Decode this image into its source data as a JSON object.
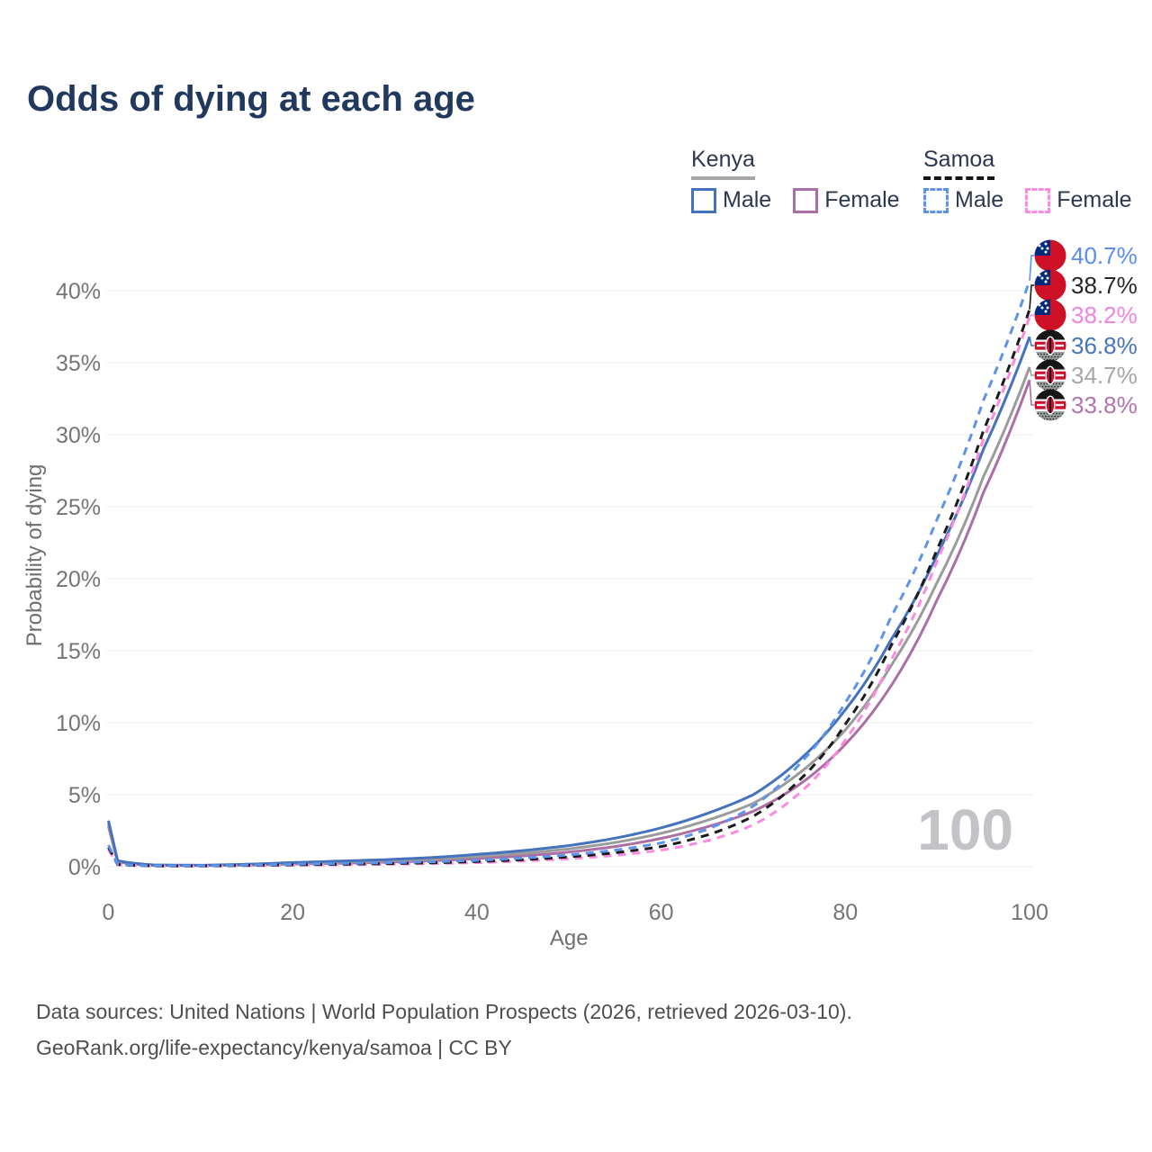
{
  "title": "Odds of dying at each age",
  "legend": {
    "groups": [
      {
        "country": "Kenya",
        "line_style": "solid",
        "underline_color": "#a6a6a6",
        "items": [
          {
            "label": "Male",
            "color": "#4472bd"
          },
          {
            "label": "Female",
            "color": "#ab6fa6"
          }
        ]
      },
      {
        "country": "Samoa",
        "line_style": "dashed",
        "underline_color": "#141414",
        "items": [
          {
            "label": "Male",
            "color": "#5e93ea"
          },
          {
            "label": "Female",
            "color": "#fb8ae0"
          }
        ]
      }
    ]
  },
  "watermark": "100",
  "footer": {
    "line1": "Data sources: United Nations | World Population Prospects (2026, retrieved 2026-03-10).",
    "line2": "GeoRank.org/life-expectancy/kenya/samoa | CC BY"
  },
  "chart_data": {
    "type": "line",
    "title": "Odds of dying at each age",
    "xlabel": "Age",
    "ylabel": "Probability of dying",
    "xlim": [
      0,
      100
    ],
    "ylim_percent": [
      0,
      42
    ],
    "x_ticks": [
      0,
      20,
      40,
      60,
      80,
      100
    ],
    "y_ticks_percent": [
      0,
      5,
      10,
      15,
      20,
      25,
      30,
      35,
      40
    ],
    "grid": "horizontal",
    "legend_position": "top-right",
    "ages": [
      0,
      1,
      5,
      10,
      15,
      20,
      25,
      30,
      35,
      40,
      45,
      50,
      55,
      60,
      65,
      70,
      75,
      80,
      85,
      90,
      95,
      100
    ],
    "series": [
      {
        "name": "Samoa Male",
        "country": "Samoa",
        "sex": "male",
        "style": "dashed",
        "color": "#5e93ea",
        "label_color": "#5b8def",
        "flag_icon": "samoa-flag",
        "end_label": "40.7%",
        "values_percent": [
          1.5,
          0.17,
          0.06,
          0.06,
          0.11,
          0.17,
          0.22,
          0.27,
          0.34,
          0.44,
          0.6,
          0.82,
          1.15,
          1.65,
          2.6,
          4.2,
          7.1,
          11.4,
          17.4,
          24.2,
          32.4,
          40.7
        ]
      },
      {
        "name": "Samoa Both sexes",
        "country": "Samoa",
        "sex": "both",
        "style": "dashed",
        "color": "#1b1b1b",
        "label_color": "#262626",
        "flag_icon": "samoa-flag",
        "end_label": "38.7%",
        "values_percent": [
          1.35,
          0.15,
          0.05,
          0.05,
          0.09,
          0.13,
          0.17,
          0.21,
          0.27,
          0.36,
          0.49,
          0.68,
          0.97,
          1.4,
          2.2,
          3.5,
          6.0,
          9.9,
          15.4,
          22.1,
          30.3,
          38.7
        ]
      },
      {
        "name": "Samoa Female",
        "country": "Samoa",
        "sex": "female",
        "style": "dashed",
        "color": "#fb8ae0",
        "label_color": "#f282df",
        "flag_icon": "samoa-flag",
        "end_label": "38.2%",
        "values_percent": [
          1.2,
          0.13,
          0.05,
          0.04,
          0.07,
          0.1,
          0.13,
          0.16,
          0.21,
          0.28,
          0.39,
          0.55,
          0.79,
          1.15,
          1.8,
          2.9,
          5.1,
          8.8,
          14.4,
          21.3,
          29.7,
          38.2
        ]
      },
      {
        "name": "Kenya Male",
        "country": "Kenya",
        "sex": "male",
        "style": "solid",
        "color": "#4472bd",
        "label_color": "#4775bb",
        "flag_icon": "kenya-flag",
        "end_label": "36.8%",
        "values_percent": [
          3.2,
          0.42,
          0.12,
          0.1,
          0.17,
          0.29,
          0.39,
          0.49,
          0.63,
          0.86,
          1.12,
          1.47,
          1.98,
          2.7,
          3.7,
          5.0,
          7.4,
          10.9,
          15.8,
          21.7,
          29.0,
          36.8
        ]
      },
      {
        "name": "Kenya Both sexes",
        "country": "Kenya",
        "sex": "both",
        "style": "solid",
        "color": "#9b9b9b",
        "label_color": "#a6a6a6",
        "flag_icon": "kenya-flag",
        "end_label": "34.7%",
        "values_percent": [
          3.0,
          0.38,
          0.1,
          0.09,
          0.14,
          0.23,
          0.31,
          0.4,
          0.52,
          0.71,
          0.93,
          1.24,
          1.68,
          2.32,
          3.22,
          4.4,
          6.5,
          9.5,
          14.0,
          19.8,
          27.1,
          34.7
        ]
      },
      {
        "name": "Kenya Female",
        "country": "Kenya",
        "sex": "female",
        "style": "solid",
        "color": "#ab6fa6",
        "label_color": "#b173ad",
        "flag_icon": "kenya-flag",
        "end_label": "33.8%",
        "values_percent": [
          2.8,
          0.34,
          0.09,
          0.08,
          0.11,
          0.18,
          0.24,
          0.31,
          0.41,
          0.56,
          0.75,
          1.02,
          1.4,
          1.97,
          2.77,
          3.85,
          5.7,
          8.5,
          12.6,
          18.6,
          26.0,
          33.8
        ]
      }
    ]
  }
}
